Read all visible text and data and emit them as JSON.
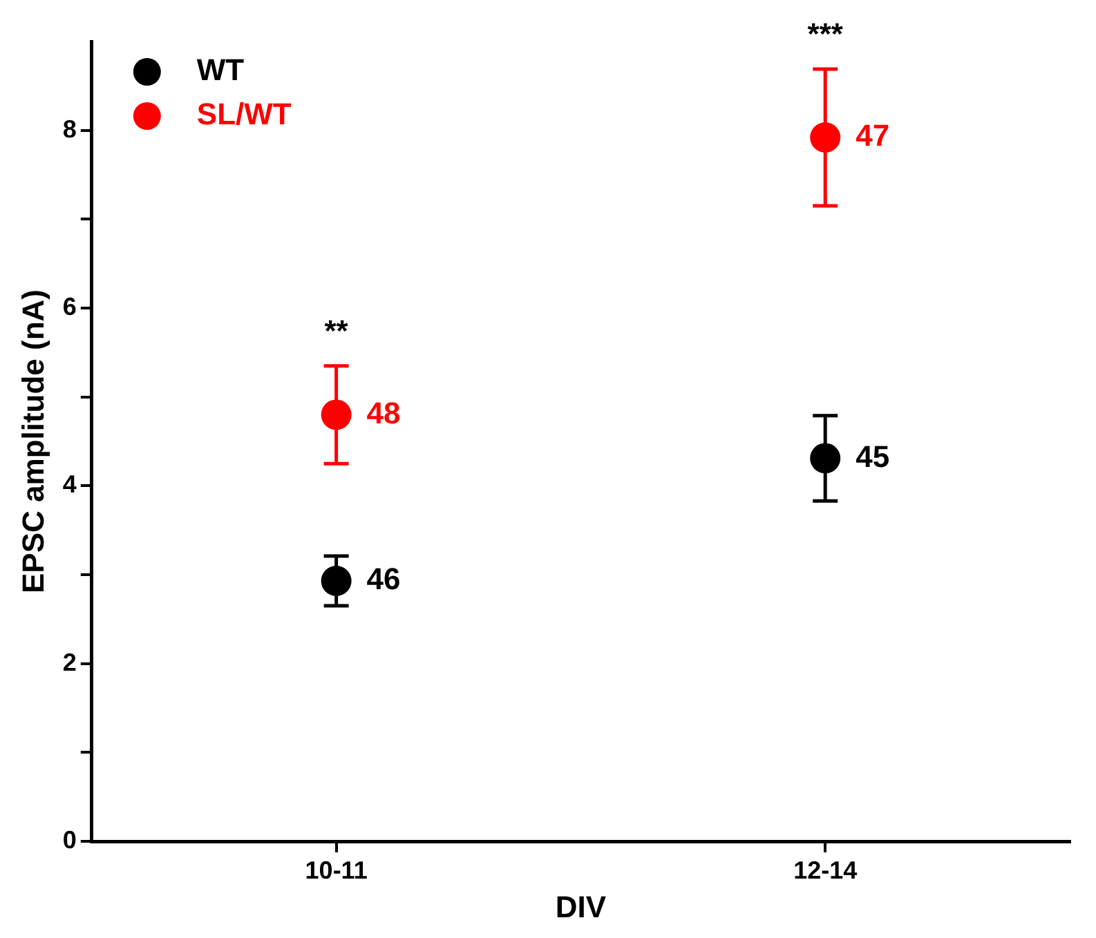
{
  "chart_data": {
    "type": "scatter",
    "xlabel": "DIV",
    "ylabel": "EPSC amplitude (nA)",
    "categories": [
      "10-11",
      "12-14"
    ],
    "series": [
      {
        "name": "WT",
        "color": "#000000",
        "values": [
          2.93,
          4.31
        ],
        "errors": [
          0.28,
          0.48
        ]
      },
      {
        "name": "SL/WT",
        "color": "#ff0000",
        "values": [
          4.8,
          7.92
        ],
        "errors": [
          0.55,
          0.77
        ]
      }
    ],
    "ylim": [
      0,
      9
    ],
    "yticks": [
      0,
      {
        "value": 1,
        "label": null
      },
      2,
      {
        "value": 3,
        "label": null
      },
      4,
      {
        "value": 5,
        "label": null
      },
      6,
      {
        "value": 7,
        "label": null
      },
      8
    ],
    "annotations": [
      {
        "text": "46",
        "x": "10-11",
        "y": 2.93
      },
      {
        "text": "48",
        "x": "10-11",
        "y": 4.8
      },
      {
        "text": "45",
        "x": "12-14",
        "y": 4.31
      },
      {
        "text": "47",
        "x": "12-14",
        "y": 7.92
      },
      "**",
      "***"
    ],
    "grid": false,
    "legend": "top left",
    "marker": "circle"
  }
}
